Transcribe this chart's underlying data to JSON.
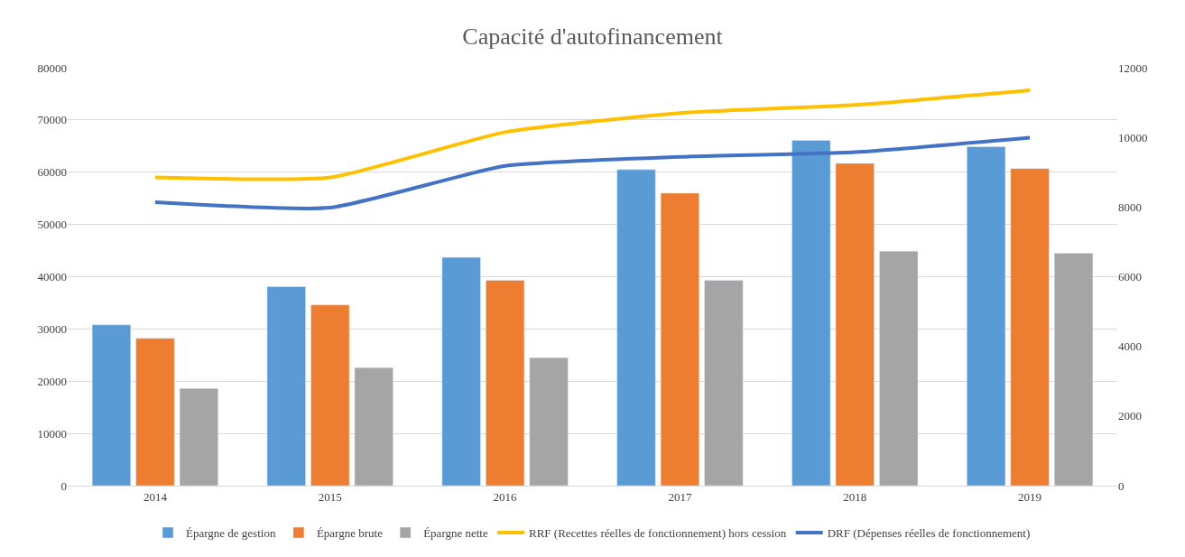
{
  "chart_data": {
    "type": "bar",
    "title": "Capacité d'autofinancement",
    "categories": [
      "2014",
      "2015",
      "2016",
      "2017",
      "2018",
      "2019"
    ],
    "series": [
      {
        "name": "Épargne de gestion",
        "color": "#5b9bd5",
        "values": [
          30800,
          38100,
          43700,
          60500,
          66100,
          64900
        ]
      },
      {
        "name": "Épargne brute",
        "color": "#ed7d31",
        "values": [
          28200,
          34600,
          39300,
          56000,
          61700,
          60700
        ]
      },
      {
        "name": "Épargne nette",
        "color": "#a5a5a5",
        "values": [
          18600,
          22600,
          24500,
          39300,
          44900,
          44500
        ]
      },
      {
        "name": "RRF (Recettes réelles de fonctionnement) hors cession",
        "type": "line",
        "axis": "y2",
        "color": "#ffc000",
        "values": [
          8850,
          8850,
          10150,
          10700,
          10930,
          11350
        ]
      },
      {
        "name": "DRF (Dépenses réelles de fonctionnement)",
        "type": "line",
        "axis": "y2",
        "color": "#4472c4",
        "values": [
          8140,
          7980,
          9180,
          9440,
          9575,
          9990
        ]
      }
    ],
    "ylim": [
      0,
      80000
    ],
    "yticks": [
      0,
      10000,
      20000,
      30000,
      40000,
      50000,
      60000,
      70000,
      80000
    ],
    "y2lim": [
      0,
      12000
    ],
    "y2ticks": [
      0,
      2000,
      4000,
      6000,
      8000,
      10000,
      12000
    ],
    "grid": "y",
    "legend": "bottom",
    "marker": "none",
    "line_style": "solid"
  }
}
